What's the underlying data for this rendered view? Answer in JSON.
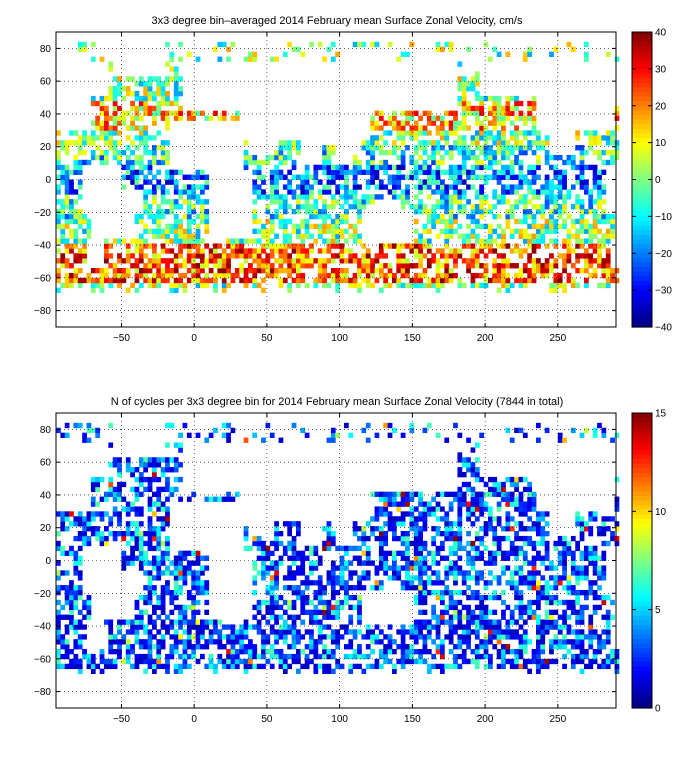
{
  "chart_data": [
    {
      "type": "heatmap",
      "title": "3x3 degree bin–averaged 2014 February mean Surface Zonal Velocity, cm/s",
      "xlim": [
        -95,
        290
      ],
      "ylim": [
        -90,
        90
      ],
      "x_ticks": [
        -50,
        0,
        50,
        100,
        150,
        200,
        250
      ],
      "y_ticks": [
        80,
        60,
        40,
        20,
        0,
        -20,
        -40,
        -60,
        -80
      ],
      "grid": true,
      "grid_style": "dotted",
      "bin_size_deg": 3,
      "colorbar": {
        "min": -40,
        "max": 40,
        "ticks": [
          40,
          30,
          20,
          10,
          0,
          -10,
          -20,
          -30,
          -40
        ],
        "colormap": "jet",
        "placement": "right"
      },
      "pattern": "zonal velocity"
    },
    {
      "type": "heatmap",
      "title": "N of cycles per 3x3 degree bin for 2014 February mean Surface Zonal Velocity (7844 in total)",
      "xlim": [
        -95,
        290
      ],
      "ylim": [
        -90,
        90
      ],
      "x_ticks": [
        -50,
        0,
        50,
        100,
        150,
        200,
        250
      ],
      "y_ticks": [
        80,
        60,
        40,
        20,
        0,
        -20,
        -40,
        -60,
        -80
      ],
      "grid": true,
      "grid_style": "dotted",
      "bin_size_deg": 3,
      "total_count": 7844,
      "colorbar": {
        "min": 0,
        "max": 15,
        "ticks": [
          15,
          10,
          5,
          0
        ],
        "colormap": "jet",
        "placement": "right"
      },
      "pattern": "count"
    }
  ]
}
